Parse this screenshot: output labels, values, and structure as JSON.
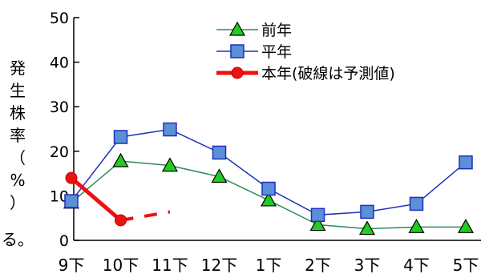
{
  "chart_data": {
    "type": "line",
    "title": "",
    "ylabel": "発生株率（%）",
    "ylabel_chars": [
      "発",
      "生",
      "株",
      "率",
      "（",
      "%",
      "）"
    ],
    "ylim": [
      0,
      50
    ],
    "yticks": [
      0,
      10,
      20,
      30,
      40,
      50
    ],
    "grid": false,
    "legend_placement": "top-right",
    "categories": [
      "9下",
      "10下",
      "11下",
      "12下",
      "1下",
      "2下",
      "3下",
      "4下",
      "5下"
    ],
    "series": [
      {
        "name": "前年",
        "marker": "triangle",
        "color": "#2e8b57",
        "marker_fill": "#22cc22",
        "values": [
          8.5,
          17.8,
          16.8,
          14.3,
          9.0,
          3.5,
          2.6,
          3.0,
          3.0
        ]
      },
      {
        "name": "平年",
        "marker": "square",
        "color": "#1f2fbf",
        "marker_fill": "#5b8fd6",
        "values": [
          8.8,
          23.2,
          24.9,
          19.7,
          11.6,
          5.7,
          6.4,
          8.2,
          17.5
        ]
      },
      {
        "name": "本年(破線は予測値)",
        "marker": "circle",
        "color": "#ee1111",
        "marker_fill": "#ee1111",
        "values": [
          14.0,
          4.5,
          null,
          null,
          null,
          null,
          null,
          null,
          null
        ],
        "forecast_values": [
          null,
          4.5,
          6.4,
          null,
          null,
          null,
          null,
          null,
          null
        ]
      }
    ]
  },
  "stray_text": "る。"
}
